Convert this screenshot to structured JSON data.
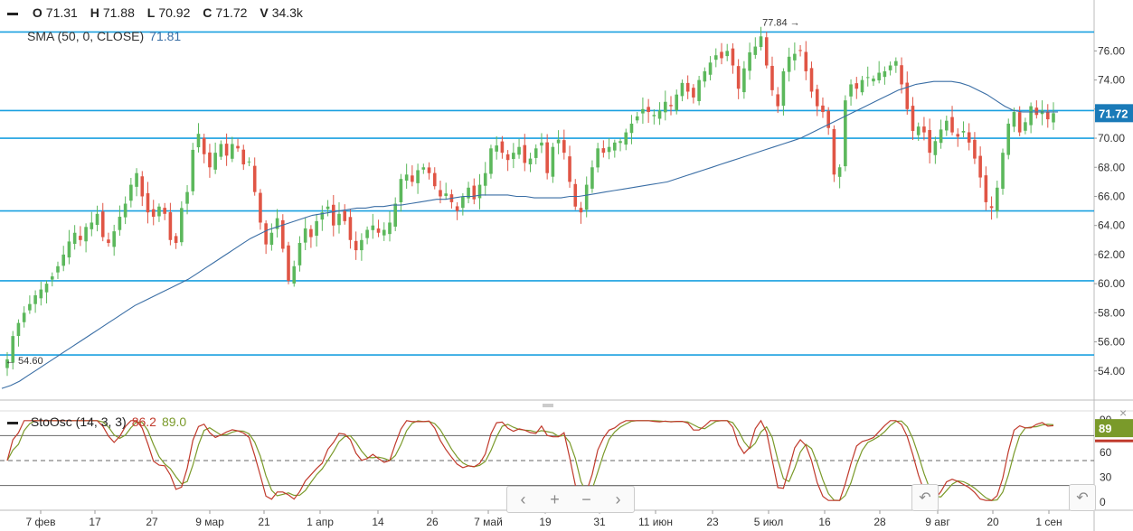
{
  "ohlc": {
    "o_label": "O",
    "o": "71.31",
    "h_label": "H",
    "h": "71.88",
    "l_label": "L",
    "l": "70.92",
    "c_label": "C",
    "c": "71.72",
    "v_label": "V",
    "v": "34.3k"
  },
  "sma": {
    "label": "SMA (50, 0, CLOSE)",
    "value": "71.81"
  },
  "stoch": {
    "label": "StoOsc (14, 3, 3)",
    "k": "86.2",
    "d": "89.0",
    "badge": "89"
  },
  "price_badge": "71.72",
  "annotations": {
    "high": "77.84",
    "low": "54.60"
  },
  "colors": {
    "up": "#5cb85c",
    "down": "#e05545",
    "hline": "#1aa0e0",
    "sma": "#3a6ea5",
    "k": "#c0392b",
    "d": "#7a9a2a"
  },
  "nav": {
    "left": "‹",
    "plus": "+",
    "minus": "−",
    "right": "›",
    "undo": "↶"
  },
  "chart_data": {
    "type": "candlestick",
    "y_ticks": [
      "76.00",
      "74.00",
      "72.00",
      "70.00",
      "68.00",
      "66.00",
      "64.00",
      "62.00",
      "60.00",
      "58.00",
      "56.00",
      "54.00"
    ],
    "ylim": [
      52.0,
      79.5
    ],
    "x_ticks": [
      "7 фев",
      "17",
      "27",
      "9 мар",
      "21",
      "1 апр",
      "14",
      "26",
      "7 май",
      "19",
      "31",
      "11 июн",
      "23",
      "5 июл",
      "16",
      "28",
      "9 авг",
      "20",
      "1 сен"
    ],
    "horizontal_lines": [
      77.3,
      71.9,
      70.0,
      65.0,
      60.2,
      55.1
    ],
    "close": [
      54.8,
      56.4,
      57.3,
      58.0,
      58.6,
      59.2,
      59.6,
      60.0,
      60.5,
      61.2,
      62.0,
      62.9,
      63.5,
      63.0,
      63.9,
      64.2,
      64.8,
      63.2,
      62.8,
      63.6,
      64.6,
      65.5,
      66.8,
      67.6,
      66.0,
      64.9,
      64.6,
      65.3,
      64.8,
      63.0,
      62.8,
      65.2,
      66.3,
      69.2,
      70.3,
      68.9,
      68.0,
      69.0,
      69.6,
      68.8,
      69.6,
      69.3,
      68.2,
      68.4,
      66.3,
      64.2,
      62.7,
      63.5,
      64.5,
      62.4,
      60.2,
      61.2,
      62.8,
      63.8,
      63.2,
      64.3,
      64.9,
      65.3,
      64.0,
      64.8,
      64.3,
      63.0,
      62.3,
      63.0,
      63.7,
      64.0,
      63.5,
      63.7,
      64.2,
      65.5,
      67.2,
      67.5,
      67.0,
      67.8,
      68.0,
      67.6,
      66.7,
      66.0,
      66.2,
      65.6,
      65.0,
      66.0,
      66.6,
      65.8,
      66.8,
      67.6,
      69.3,
      69.5,
      69.0,
      68.5,
      69.0,
      69.4,
      68.3,
      68.6,
      69.3,
      69.7,
      67.6,
      69.4,
      69.9,
      69.0,
      67.0,
      65.3,
      64.9,
      66.8,
      68.0,
      69.3,
      69.0,
      69.4,
      69.7,
      69.8,
      70.4,
      71.0,
      71.5,
      72.0,
      71.8,
      71.6,
      71.9,
      72.5,
      72.2,
      73.0,
      73.8,
      73.2,
      72.8,
      74.0,
      74.6,
      75.2,
      75.7,
      75.5,
      76.0,
      75.0,
      73.4,
      74.8,
      75.9,
      76.3,
      77.0,
      75.0,
      73.3,
      72.2,
      74.6,
      75.6,
      75.8,
      76.0,
      74.6,
      73.2,
      72.2,
      71.8,
      70.7,
      67.5,
      68.0,
      72.6,
      73.7,
      73.4,
      74.0,
      74.2,
      74.1,
      74.5,
      74.6,
      75.0,
      75.3,
      73.7,
      72.0,
      70.5,
      70.8,
      70.4,
      69.0,
      69.8,
      70.6,
      71.2,
      70.4,
      70.1,
      70.5,
      69.7,
      68.6,
      67.3,
      65.6,
      65.2,
      66.6,
      69.0,
      71.0,
      71.8,
      70.4,
      71.1,
      72.2,
      71.6,
      71.9,
      71.3,
      71.72
    ],
    "sma50": [
      52.8,
      53.0,
      53.3,
      53.7,
      54.1,
      54.5,
      54.9,
      55.3,
      55.7,
      56.1,
      56.5,
      56.9,
      57.3,
      57.7,
      58.1,
      58.5,
      58.8,
      59.1,
      59.4,
      59.7,
      60.0,
      60.3,
      60.7,
      61.1,
      61.5,
      61.9,
      62.3,
      62.7,
      63.1,
      63.4,
      63.7,
      63.9,
      64.1,
      64.3,
      64.5,
      64.7,
      64.8,
      64.9,
      65.0,
      65.1,
      65.2,
      65.2,
      65.3,
      65.3,
      65.4,
      65.4,
      65.5,
      65.6,
      65.7,
      65.8,
      65.8,
      65.9,
      66.0,
      66.0,
      66.1,
      66.1,
      66.1,
      66.1,
      66.0,
      66.0,
      65.9,
      65.9,
      65.9,
      65.9,
      66.0,
      66.0,
      66.1,
      66.2,
      66.3,
      66.4,
      66.5,
      66.6,
      66.7,
      66.8,
      66.9,
      67.0,
      67.2,
      67.4,
      67.6,
      67.8,
      68.0,
      68.2,
      68.4,
      68.6,
      68.8,
      69.0,
      69.2,
      69.4,
      69.6,
      69.8,
      70.0,
      70.3,
      70.6,
      70.9,
      71.2,
      71.5,
      71.8,
      72.1,
      72.4,
      72.7,
      73.0,
      73.3,
      73.5,
      73.7,
      73.8,
      73.9,
      73.9,
      73.9,
      73.8,
      73.6,
      73.3,
      73.0,
      72.6,
      72.2,
      71.9,
      71.8,
      71.8,
      71.8,
      71.8,
      71.8
    ]
  }
}
